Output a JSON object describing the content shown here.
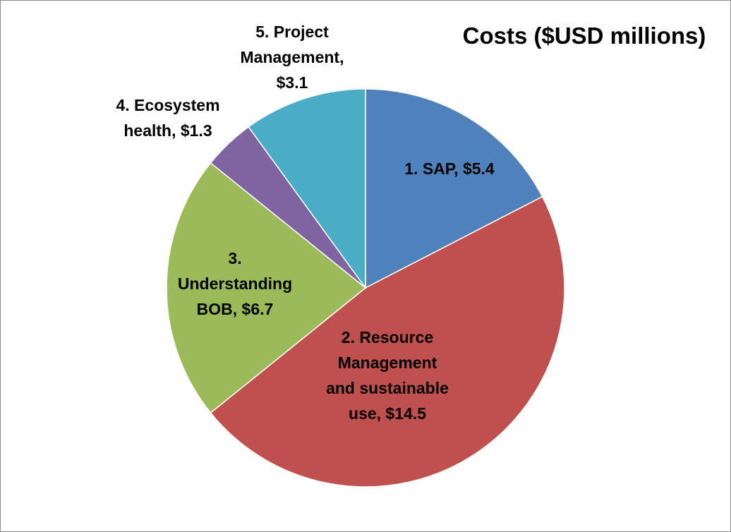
{
  "chart_data": {
    "type": "pie",
    "title": "Costs ($USD millions)",
    "start_angle_deg": 0,
    "direction": "clockwise",
    "slices": [
      {
        "category": "1.  SAP",
        "value": 5.4,
        "color": "#4F81BD",
        "label_lines": [
          "1.  SAP, $5.4"
        ]
      },
      {
        "category": "2.  Resource Management and sustainable use",
        "value": 14.5,
        "color": "#C0504D",
        "label_lines": [
          "2.  Resource",
          "Management",
          "and sustainable",
          "use, $14.5"
        ]
      },
      {
        "category": "3.  Understanding BOB",
        "value": 6.7,
        "color": "#9BBB59",
        "label_lines": [
          "3.",
          "Understanding",
          "BOB, $6.7"
        ]
      },
      {
        "category": "4.  Ecosystem health",
        "value": 1.3,
        "color": "#8064A2",
        "label_lines": [
          "4.  Ecosystem",
          "health, $1.3"
        ]
      },
      {
        "category": "5.  Project Management",
        "value": 3.1,
        "color": "#4BACC6",
        "label_lines": [
          "5.  Project",
          "Management,",
          "$3.1"
        ]
      }
    ]
  }
}
